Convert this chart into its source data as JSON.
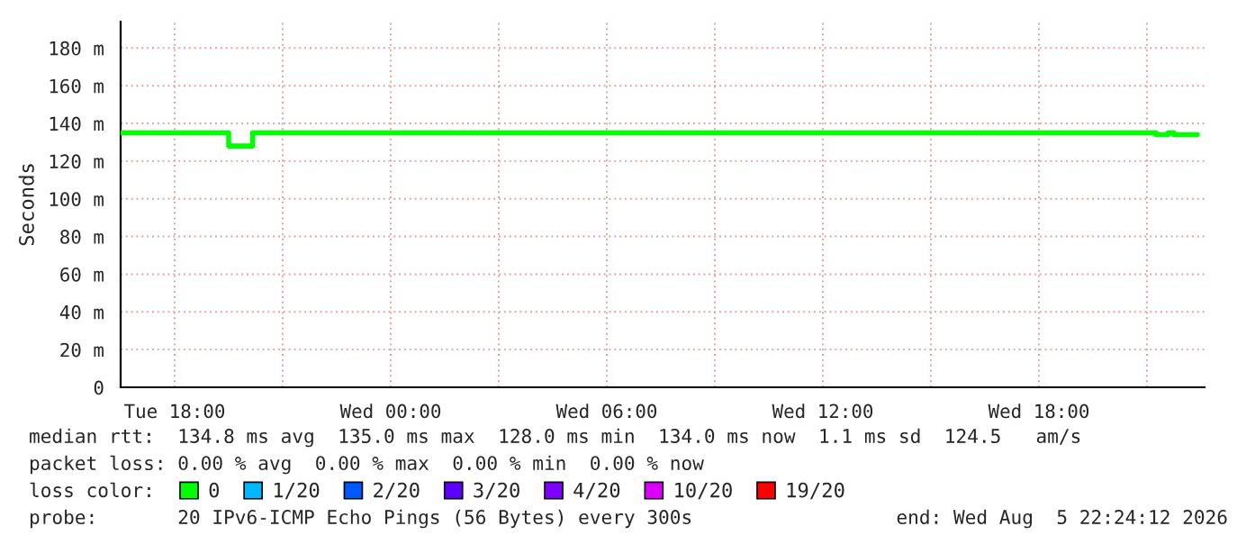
{
  "chart_data": {
    "type": "step",
    "ylabel": "Seconds",
    "xlim": [
      "2026-08-04T16:30",
      "2026-08-05T22:36"
    ],
    "ylim": [
      0,
      194
    ],
    "xticks": [
      {
        "value": "2026-08-04T18:00",
        "label": "Tue 18:00"
      },
      {
        "value": "2026-08-04T21:00",
        "label": null
      },
      {
        "value": "2026-08-05T00:00",
        "label": "Wed 00:00"
      },
      {
        "value": "2026-08-05T03:00",
        "label": null
      },
      {
        "value": "2026-08-05T06:00",
        "label": "Wed 06:00"
      },
      {
        "value": "2026-08-05T09:00",
        "label": null
      },
      {
        "value": "2026-08-05T12:00",
        "label": "Wed 12:00"
      },
      {
        "value": "2026-08-05T15:00",
        "label": null
      },
      {
        "value": "2026-08-05T18:00",
        "label": "Wed 18:00"
      },
      {
        "value": "2026-08-05T21:00",
        "label": null
      }
    ],
    "yticks": [
      {
        "value": 0,
        "label": "0"
      },
      {
        "value": 20,
        "label": "20 m"
      },
      {
        "value": 40,
        "label": "40 m"
      },
      {
        "value": 60,
        "label": "60 m"
      },
      {
        "value": 80,
        "label": "80 m"
      },
      {
        "value": 100,
        "label": "100 m"
      },
      {
        "value": 120,
        "label": "120 m"
      },
      {
        "value": 140,
        "label": "140 m"
      },
      {
        "value": 160,
        "label": "160 m"
      },
      {
        "value": 180,
        "label": "180 m"
      }
    ],
    "grid": true,
    "legend": "bottom",
    "series": [
      {
        "name": "0",
        "color": "#00ff00",
        "x": [
          "2026-08-04T16:30",
          "2026-08-04T19:30",
          "2026-08-04T20:10",
          "2026-08-05T21:15",
          "2026-08-05T21:35",
          "2026-08-05T21:45",
          "2026-08-05T22:24"
        ],
        "values": [
          135,
          128,
          135,
          134,
          135,
          134,
          134
        ]
      },
      {
        "name": "1/20",
        "color": "#00b8ff"
      },
      {
        "name": "2/20",
        "color": "#0059ff"
      },
      {
        "name": "3/20",
        "color": "#5e00ff"
      },
      {
        "name": "4/20",
        "color": "#7e00ff"
      },
      {
        "name": "10/20",
        "color": "#dd00ff"
      },
      {
        "name": "19/20",
        "color": "#ff0000"
      }
    ],
    "annotations": [
      "median rtt:  134.8 ms avg  135.0 ms max  128.0 ms min  134.0 ms now  1.1 ms sd  124.5   am/s",
      "packet loss: 0.00 % avg  0.00 % max  0.00 % min  0.00 % now",
      "loss color:",
      "probe:       20 IPv6-ICMP Echo Pings (56 Bytes) every 300s",
      "end: Wed Aug  5 22:24:12 2026"
    ]
  }
}
